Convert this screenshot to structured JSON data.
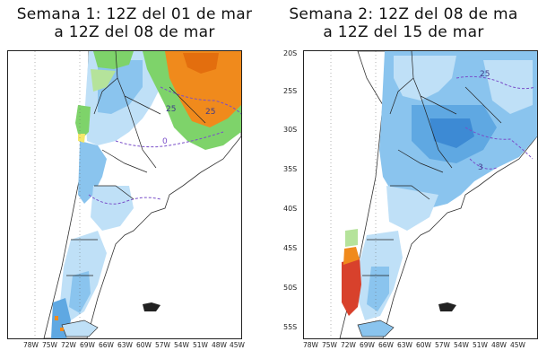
{
  "panels": [
    {
      "title_line1": "Semana 1: 12Z del 01 de mar",
      "title_line2": "a 12Z del 08 de mar",
      "contour_labels": [
        "25",
        "25",
        "0"
      ],
      "latitude_labels": [],
      "longitude_labels": [
        "78W",
        "75W",
        "72W",
        "69W",
        "66W",
        "63W",
        "60W",
        "57W",
        "54W",
        "51W",
        "48W",
        "45W"
      ]
    },
    {
      "title_line1": "Semana 2: 12Z del 08 de ma",
      "title_line2": "a 12Z del 15 de mar",
      "contour_labels": [
        "25",
        "3"
      ],
      "latitude_labels": [
        "20S",
        "25S",
        "30S",
        "35S",
        "40S",
        "45S",
        "50S",
        "55S"
      ],
      "longitude_labels": [
        "78W",
        "75W",
        "72W",
        "69W",
        "66W",
        "63W",
        "60W",
        "57W",
        "54W",
        "51W",
        "48W",
        "45W"
      ]
    }
  ],
  "colors": {
    "light_blue": "#bfe0f7",
    "medium_blue": "#8ac4ee",
    "blue": "#5fa8e2",
    "dark_blue": "#3d8ad4",
    "green": "#7ed36a",
    "light_green": "#b5e39b",
    "yellow": "#f4e86a",
    "orange": "#f08a1c",
    "dark_orange": "#e36e0e",
    "red": "#d8412c",
    "border": "#222222",
    "contour": "#7a4fc9"
  }
}
